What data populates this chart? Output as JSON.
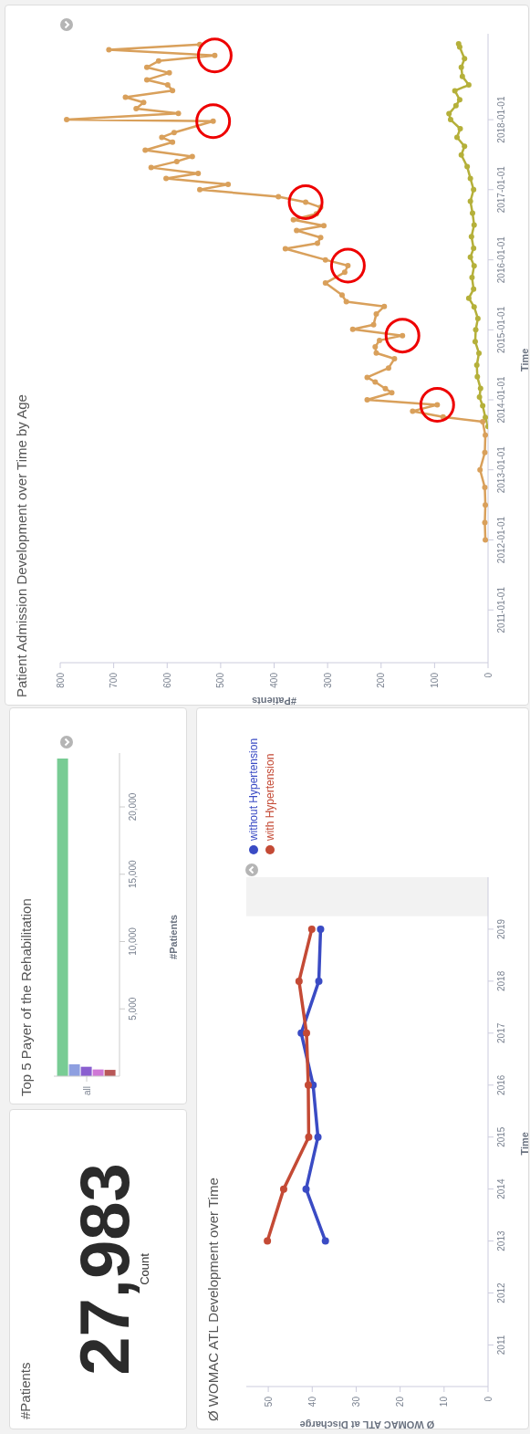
{
  "chart_data": [
    {
      "type": "other",
      "title": "#Patients",
      "annotations": [
        "27,983",
        "Count"
      ]
    },
    {
      "type": "bar",
      "title": "Top 5 Payer of the Rehabilitation",
      "categories": [
        "all"
      ],
      "ylabel": "#Patients",
      "ylim": [
        0,
        24000
      ],
      "yticks": [
        {
          "value": 5000,
          "label": "5,000"
        },
        {
          "value": 10000,
          "label": "10,000"
        },
        {
          "value": 15000,
          "label": "15,000"
        },
        {
          "value": 20000,
          "label": "20,000"
        }
      ],
      "series": [
        {
          "color": "#78cc94",
          "values": [
            23600
          ]
        },
        {
          "color": "#8e9fe0",
          "values": [
            880
          ]
        },
        {
          "color": "#8a5fd0",
          "values": [
            700
          ]
        },
        {
          "color": "#cf78d6",
          "values": [
            500
          ]
        },
        {
          "color": "#b85858",
          "values": [
            470
          ]
        }
      ]
    },
    {
      "type": "line",
      "title": "Patient Admission Development over Time by Age",
      "orientation": "horizontal",
      "xlabel": "#Patients",
      "ylabel": "Time",
      "marker": "circle",
      "xlim": [
        800,
        0
      ],
      "xticks": [
        0,
        100,
        200,
        300,
        400,
        500,
        600,
        700,
        800
      ],
      "ylim": [
        "2010-04-01",
        "2019-03-25"
      ],
      "yticks": [
        "2011-01-01",
        "2012-01-01",
        "2013-01-01",
        "2014-01-01",
        "2015-01-01",
        "2016-01-01",
        "2017-01-01",
        "2018-01-01"
      ],
      "series": [
        {
          "color": "#d9a05b",
          "x": [
            "2012-01-01",
            "2012-04-01",
            "2012-07-01",
            "2012-10-01",
            "2013-01-01",
            "2013-04-01",
            "2013-07-01",
            "2013-09-09",
            "2013-10-04",
            "2013-11-03",
            "2013-12-06",
            "2014-01-01",
            "2014-02-07",
            "2014-02-28",
            "2014-04-04",
            "2014-04-28",
            "2014-06-16",
            "2014-08-03",
            "2014-09-02",
            "2014-10-04",
            "2014-11-07",
            "2014-12-02",
            "2015-01-04",
            "2015-01-28",
            "2015-03-24",
            "2015-05-03",
            "2015-05-28",
            "2015-07-01",
            "2015-09-02",
            "2015-10-28",
            "2015-12-02",
            "2016-01-01",
            "2016-02-28",
            "2016-03-27",
            "2016-04-26",
            "2016-06-02",
            "2016-06-27",
            "2016-07-28",
            "2016-08-28",
            "2016-10-01",
            "2016-10-28",
            "2016-11-25",
            "2017-01-01",
            "2017-01-28",
            "2017-02-28",
            "2017-03-27",
            "2017-04-26",
            "2017-05-28",
            "2017-06-23",
            "2017-07-26",
            "2017-09-06",
            "2017-10-01",
            "2017-10-26",
            "2017-12-24",
            "2018-01-01",
            "2018-02-03",
            "2018-02-28",
            "2018-04-01",
            "2018-04-28",
            "2018-06-02",
            "2018-07-01",
            "2018-07-28",
            "2018-09-02",
            "2018-10-01",
            "2018-11-03",
            "2018-12-02",
            "2019-01-01",
            "2019-01-28"
          ],
          "values": [
            5,
            6,
            5,
            6,
            15,
            6,
            5,
            10,
            84,
            141,
            95,
            226,
            180,
            192,
            211,
            226,
            186,
            175,
            209,
            211,
            203,
            160,
            253,
            214,
            209,
            194,
            265,
            273,
            304,
            268,
            262,
            304,
            379,
            319,
            313,
            358,
            307,
            364,
            321,
            313,
            341,
            392,
            539,
            486,
            602,
            542,
            630,
            582,
            553,
            641,
            590,
            610,
            587,
            514,
            788,
            579,
            658,
            644,
            678,
            590,
            599,
            638,
            596,
            638,
            616,
            511,
            709,
            539
          ]
        },
        {
          "color": "#b5b03a",
          "x": [
            "2013-08-15",
            "2013-10-01",
            "2013-12-01",
            "2014-01-15",
            "2014-03-01",
            "2014-05-01",
            "2014-07-01",
            "2014-09-01",
            "2014-11-01",
            "2015-01-01",
            "2015-03-01",
            "2015-05-01",
            "2015-06-15",
            "2015-08-01",
            "2015-10-01",
            "2015-12-01",
            "2016-01-15",
            "2016-03-01",
            "2016-05-01",
            "2016-07-01",
            "2016-09-01",
            "2016-11-01",
            "2017-01-01",
            "2017-03-01",
            "2017-05-01",
            "2017-07-01",
            "2017-08-15",
            "2017-10-01",
            "2017-11-15",
            "2018-01-01",
            "2018-02-01",
            "2018-03-15",
            "2018-04-15",
            "2018-06-01",
            "2018-07-01",
            "2018-08-15",
            "2018-10-01",
            "2018-11-15",
            "2019-01-15",
            "2019-02-01"
          ],
          "values": [
            0,
            5,
            10,
            16,
            14,
            20,
            21,
            17,
            24,
            23,
            19,
            26,
            36,
            27,
            30,
            26,
            33,
            27,
            31,
            26,
            29,
            33,
            27,
            33,
            39,
            50,
            44,
            58,
            52,
            70,
            73,
            60,
            53,
            62,
            36,
            48,
            50,
            44,
            53,
            55
          ]
        }
      ]
    },
    {
      "type": "line",
      "title": "Ø WOMAC ATL Development over Time",
      "orientation": "horizontal",
      "xlabel": "Ø WOMAC ATL at Discharge",
      "ylabel": "Time",
      "marker": "circle",
      "legend": "top left",
      "x": [
        2013,
        2014,
        2015,
        2016,
        2017,
        2018,
        2019
      ],
      "xlim": [
        55,
        0
      ],
      "xticks": [
        0,
        10,
        20,
        30,
        40,
        50
      ],
      "ylim": [
        2010.2,
        2020
      ],
      "yticks": [
        2011,
        2012,
        2013,
        2014,
        2015,
        2016,
        2017,
        2018,
        2019
      ],
      "bands": [
        {
          "axis": "y",
          "from": 2019.25,
          "to": 2020,
          "color": "#f2f2f2"
        }
      ],
      "series": [
        {
          "name": "without Hypertension",
          "color": "#3a4bc4",
          "values": [
            37.0,
            41.4,
            38.7,
            39.8,
            42.5,
            38.5,
            38.1
          ]
        },
        {
          "name": "with Hypertension",
          "color": "#c44a35",
          "values": [
            50.2,
            46.5,
            40.8,
            40.9,
            41.3,
            43.0,
            40.1
          ]
        }
      ]
    }
  ]
}
